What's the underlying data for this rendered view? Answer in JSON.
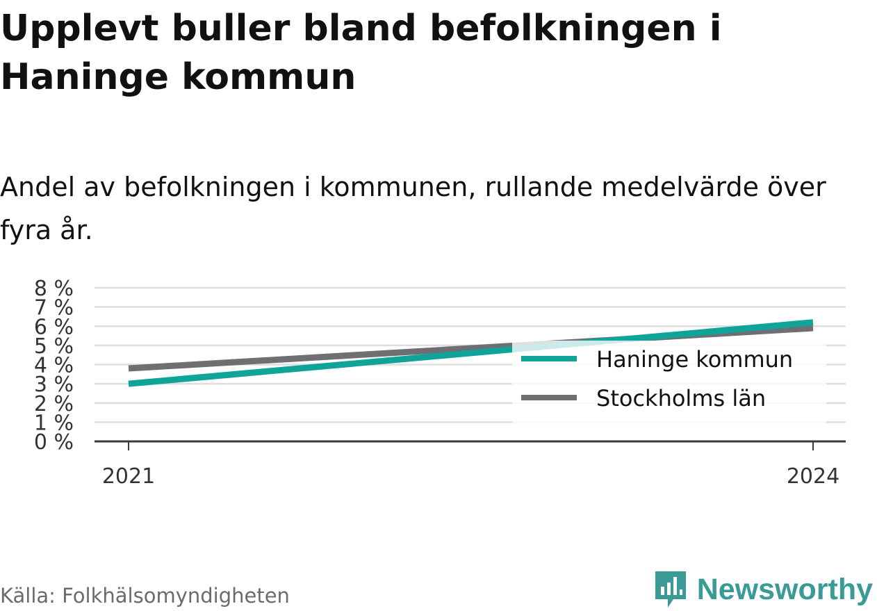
{
  "title": "Upplevt buller bland befolkningen i Haninge kommun",
  "subtitle": "Andel av befolkningen i kommunen, rullande medelvärde över fyra år.",
  "source": "Källa: Folkhälsomyndigheten",
  "brand": {
    "name": "Newsworthy",
    "icon": "newsworthy-logo-icon",
    "color": "#3a9b96"
  },
  "chart_data": {
    "type": "line",
    "title": "Upplevt buller bland befolkningen i Haninge kommun",
    "subtitle": "Andel av befolkningen i kommunen, rullande medelvärde över fyra år.",
    "xlabel": "",
    "ylabel": "",
    "x": [
      "2021",
      "2024"
    ],
    "x_ticks": [
      "2021",
      "2024"
    ],
    "y_ticks": [
      "0 %",
      "1 %",
      "2 %",
      "3 %",
      "4 %",
      "5 %",
      "6 %",
      "7 %",
      "8 %"
    ],
    "ylim": [
      0,
      8
    ],
    "grid": true,
    "legend_position": "bottom-right",
    "series": [
      {
        "name": "Haninge kommun",
        "values": [
          3.0,
          6.2
        ],
        "color": "#0fa39a"
      },
      {
        "name": "Stockholms län",
        "values": [
          3.8,
          5.9
        ],
        "color": "#6e6e73"
      }
    ]
  }
}
